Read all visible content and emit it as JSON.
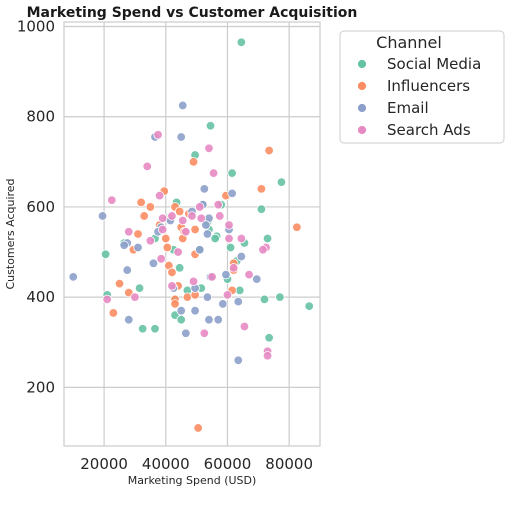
{
  "chart_data": {
    "type": "scatter",
    "title": "Marketing Spend vs Customer Acquisition",
    "xlabel": "Marketing Spend (USD)",
    "ylabel": "Customers Acquired",
    "xlim": [
      7000,
      90000
    ],
    "ylim": [
      70,
      1010
    ],
    "x_ticks": [
      20000,
      40000,
      60000,
      80000
    ],
    "x_tick_labels": [
      "20000",
      "40000",
      "60000",
      "80000"
    ],
    "y_ticks": [
      200,
      400,
      600,
      800,
      1000
    ],
    "y_tick_labels": [
      "200",
      "400",
      "600",
      "800",
      "1000"
    ],
    "grid": true,
    "legend": {
      "title": "Channel",
      "position": "upper right, outside plot"
    },
    "series": [
      {
        "name": "Social Media",
        "color": "#66c2a5",
        "points": [
          [
            64500,
            965
          ],
          [
            54500,
            780
          ],
          [
            49500,
            715
          ],
          [
            61500,
            675
          ],
          [
            77500,
            655
          ],
          [
            71000,
            595
          ],
          [
            43500,
            610
          ],
          [
            52000,
            605
          ],
          [
            58000,
            605
          ],
          [
            40500,
            575
          ],
          [
            53500,
            565
          ],
          [
            54000,
            550
          ],
          [
            36500,
            530
          ],
          [
            56500,
            535
          ],
          [
            73000,
            530
          ],
          [
            26500,
            520
          ],
          [
            65500,
            520
          ],
          [
            61000,
            510
          ],
          [
            42500,
            505
          ],
          [
            51000,
            505
          ],
          [
            20500,
            495
          ],
          [
            63000,
            480
          ],
          [
            55000,
            445
          ],
          [
            60000,
            440
          ],
          [
            44500,
            465
          ],
          [
            31500,
            420
          ],
          [
            51500,
            420
          ],
          [
            64000,
            415
          ],
          [
            47000,
            415
          ],
          [
            72000,
            395
          ],
          [
            77000,
            400
          ],
          [
            21000,
            405
          ],
          [
            43000,
            395
          ],
          [
            86500,
            380
          ],
          [
            43000,
            360
          ],
          [
            45000,
            350
          ],
          [
            73500,
            310
          ],
          [
            32500,
            330
          ],
          [
            36500,
            330
          ],
          [
            56000,
            530
          ]
        ]
      },
      {
        "name": "Influencers",
        "color": "#fc8d62",
        "points": [
          [
            73500,
            725
          ],
          [
            49000,
            700
          ],
          [
            39500,
            635
          ],
          [
            71000,
            640
          ],
          [
            59500,
            625
          ],
          [
            43000,
            600
          ],
          [
            32000,
            610
          ],
          [
            35000,
            600
          ],
          [
            44500,
            590
          ],
          [
            47500,
            585
          ],
          [
            33000,
            580
          ],
          [
            41500,
            575
          ],
          [
            45000,
            555
          ],
          [
            46000,
            545
          ],
          [
            38000,
            560
          ],
          [
            49500,
            550
          ],
          [
            82500,
            555
          ],
          [
            31000,
            540
          ],
          [
            45500,
            530
          ],
          [
            40000,
            530
          ],
          [
            29500,
            505
          ],
          [
            40500,
            510
          ],
          [
            49500,
            495
          ],
          [
            62000,
            475
          ],
          [
            41000,
            470
          ],
          [
            42000,
            455
          ],
          [
            25000,
            430
          ],
          [
            44000,
            425
          ],
          [
            61500,
            415
          ],
          [
            28000,
            410
          ],
          [
            43000,
            395
          ],
          [
            47000,
            400
          ],
          [
            43000,
            385
          ],
          [
            49500,
            405
          ],
          [
            23000,
            365
          ],
          [
            50500,
            110
          ],
          [
            62000,
            460
          ]
        ]
      },
      {
        "name": "Email",
        "color": "#8da0cb",
        "points": [
          [
            45500,
            825
          ],
          [
            36500,
            755
          ],
          [
            45000,
            755
          ],
          [
            52500,
            640
          ],
          [
            61500,
            630
          ],
          [
            52000,
            605
          ],
          [
            19500,
            580
          ],
          [
            48500,
            590
          ],
          [
            41500,
            570
          ],
          [
            54000,
            575
          ],
          [
            53000,
            560
          ],
          [
            38500,
            555
          ],
          [
            37500,
            545
          ],
          [
            53500,
            540
          ],
          [
            27500,
            520
          ],
          [
            26500,
            515
          ],
          [
            51000,
            505
          ],
          [
            64500,
            490
          ],
          [
            36000,
            475
          ],
          [
            59500,
            450
          ],
          [
            54500,
            445
          ],
          [
            69500,
            440
          ],
          [
            10000,
            445
          ],
          [
            27500,
            460
          ],
          [
            49500,
            420
          ],
          [
            42500,
            420
          ],
          [
            53500,
            400
          ],
          [
            63500,
            390
          ],
          [
            58500,
            385
          ],
          [
            45000,
            370
          ],
          [
            49500,
            370
          ],
          [
            28000,
            350
          ],
          [
            54000,
            350
          ],
          [
            57000,
            350
          ],
          [
            46500,
            320
          ],
          [
            63500,
            260
          ],
          [
            31000,
            510
          ],
          [
            60500,
            550
          ]
        ]
      },
      {
        "name": "Search Ads",
        "color": "#e78ac3",
        "points": [
          [
            37500,
            760
          ],
          [
            54000,
            730
          ],
          [
            34000,
            690
          ],
          [
            55500,
            675
          ],
          [
            38000,
            625
          ],
          [
            22500,
            615
          ],
          [
            57000,
            605
          ],
          [
            51000,
            600
          ],
          [
            48500,
            580
          ],
          [
            51500,
            575
          ],
          [
            57500,
            580
          ],
          [
            42000,
            580
          ],
          [
            39000,
            575
          ],
          [
            45500,
            570
          ],
          [
            60500,
            560
          ],
          [
            39000,
            550
          ],
          [
            46500,
            545
          ],
          [
            28000,
            545
          ],
          [
            35000,
            525
          ],
          [
            60500,
            530
          ],
          [
            64500,
            530
          ],
          [
            72500,
            510
          ],
          [
            44000,
            500
          ],
          [
            38500,
            485
          ],
          [
            67000,
            450
          ],
          [
            71500,
            505
          ],
          [
            62000,
            465
          ],
          [
            55000,
            445
          ],
          [
            49000,
            435
          ],
          [
            42000,
            425
          ],
          [
            21000,
            395
          ],
          [
            30000,
            400
          ],
          [
            60000,
            405
          ],
          [
            65500,
            335
          ],
          [
            52500,
            320
          ],
          [
            73000,
            280
          ],
          [
            73000,
            270
          ]
        ]
      }
    ]
  }
}
